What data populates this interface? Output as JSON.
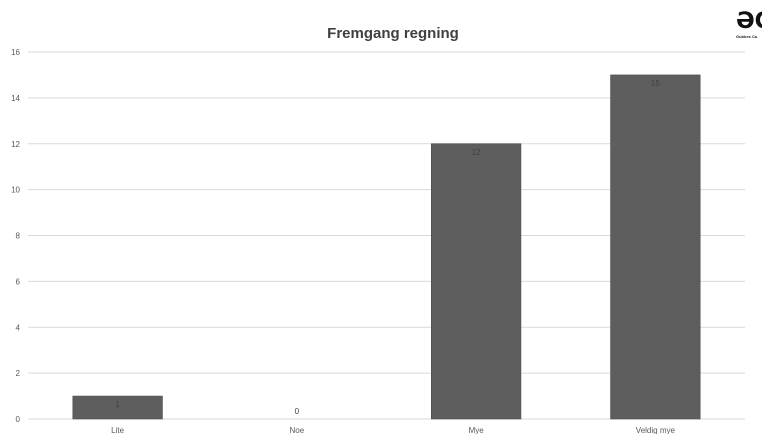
{
  "logo": {
    "glyph": "ƏC",
    "text": "Gubbes Ca"
  },
  "chart_data": {
    "type": "bar",
    "title": "Fremgang regning",
    "xlabel": "",
    "ylabel": "",
    "categories": [
      "Lite",
      "Noe",
      "Mye",
      "Veldig mye"
    ],
    "values": [
      1,
      0,
      12,
      15
    ],
    "ylim": [
      0,
      16
    ],
    "yticks": [
      0,
      2,
      4,
      6,
      8,
      10,
      12,
      14,
      16
    ],
    "grid": true,
    "legend": "none",
    "data_labels": true,
    "bar_color": "#5e5e5e",
    "grid_color": "#d9d9d9"
  }
}
